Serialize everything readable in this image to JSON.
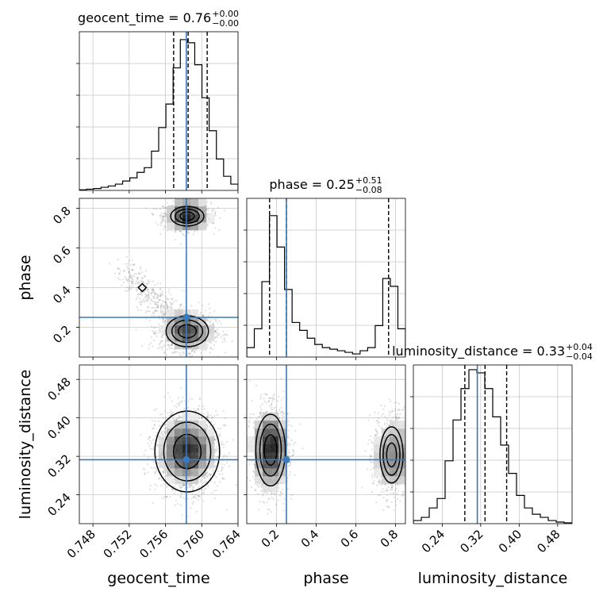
{
  "chart_data": {
    "type": "corner",
    "truth_color": "#3a7ab8",
    "parameters": [
      {
        "name": "geocent_time",
        "label": "geocent_time",
        "range": [
          0.7465,
          0.764
        ],
        "truth": 0.7583,
        "ticks": [
          0.748,
          0.752,
          0.756,
          0.76,
          0.764
        ],
        "tick_labels": [
          "0.748",
          "0.752",
          "0.756",
          "0.760",
          "0.764"
        ],
        "title_prefix": "geocent_time = 0.76",
        "title_sup": "+0.00",
        "title_sub": "−0.00",
        "quantiles": [
          0.7569,
          0.7585,
          0.7606
        ],
        "hist": [
          0.004,
          0.008,
          0.012,
          0.02,
          0.028,
          0.04,
          0.06,
          0.08,
          0.115,
          0.145,
          0.25,
          0.4,
          0.55,
          0.78,
          0.96,
          0.94,
          0.8,
          0.59,
          0.38,
          0.2,
          0.09,
          0.04
        ]
      },
      {
        "name": "phase",
        "label": "phase",
        "range": [
          0.05,
          0.85
        ],
        "truth": 0.25,
        "ticks": [
          0.2,
          0.4,
          0.6,
          0.8
        ],
        "tick_labels": [
          "0.2",
          "0.4",
          "0.6",
          "0.8"
        ],
        "title_prefix": "phase = 0.25",
        "title_sup": "+0.51",
        "title_sub": "−0.08",
        "quantiles": [
          0.165,
          0.25,
          0.765
        ],
        "hist": [
          0.06,
          0.18,
          0.48,
          0.9,
          0.7,
          0.43,
          0.22,
          0.17,
          0.12,
          0.08,
          0.06,
          0.05,
          0.04,
          0.03,
          0.02,
          0.04,
          0.06,
          0.2,
          0.5,
          0.45,
          0.18
        ]
      },
      {
        "name": "luminosity_distance",
        "label": "luminosity_distance",
        "range": [
          0.18,
          0.51
        ],
        "truth": 0.313,
        "ticks": [
          0.24,
          0.32,
          0.4,
          0.48
        ],
        "tick_labels": [
          "0.24",
          "0.32",
          "0.40",
          "0.48"
        ],
        "title_prefix": "luminosity_distance = 0.33",
        "title_sup": "+0.04",
        "title_sub": "−0.04",
        "quantiles": [
          0.287,
          0.329,
          0.374
        ],
        "hist": [
          0.02,
          0.04,
          0.1,
          0.16,
          0.4,
          0.66,
          0.86,
          0.98,
          0.96,
          0.86,
          0.68,
          0.5,
          0.32,
          0.18,
          0.1,
          0.06,
          0.04,
          0.02,
          0.01,
          0.005
        ]
      }
    ],
    "pairs": [
      {
        "x": "geocent_time",
        "y": "phase",
        "modes": [
          {
            "cx": 0.7584,
            "cy": 0.76,
            "sx": 0.0013,
            "sy": 0.035,
            "w": 0.45
          },
          {
            "cx": 0.7584,
            "cy": 0.18,
            "sx": 0.0015,
            "sy": 0.05,
            "w": 0.55
          }
        ],
        "tail": {
          "from": [
            0.7515,
            0.48
          ],
          "to": [
            0.757,
            0.25
          ],
          "spread": 0.04
        }
      },
      {
        "x": "geocent_time",
        "y": "luminosity_distance",
        "modes": [
          {
            "cx": 0.7584,
            "cy": 0.33,
            "sx": 0.0017,
            "sy": 0.04,
            "w": 1.0
          }
        ]
      },
      {
        "x": "phase",
        "y": "luminosity_distance",
        "modes": [
          {
            "cx": 0.17,
            "cy": 0.333,
            "sx": 0.045,
            "sy": 0.045,
            "w": 0.62
          },
          {
            "cx": 0.78,
            "cy": 0.323,
            "sx": 0.045,
            "sy": 0.045,
            "w": 0.38
          }
        ]
      }
    ]
  }
}
